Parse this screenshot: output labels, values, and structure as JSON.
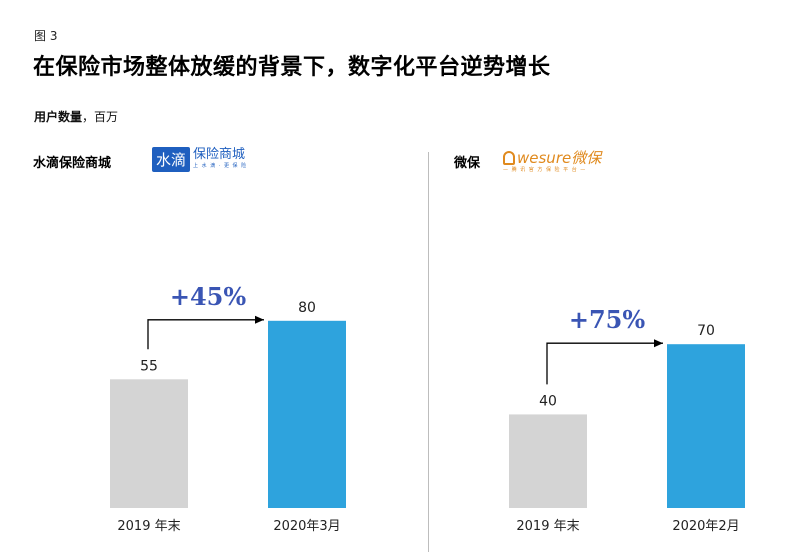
{
  "header": {
    "figure_label": "图 3",
    "title": "在保险市场整体放缓的背景下，数字化平台逆势增长",
    "subtitle_bold": "用户数量",
    "subtitle_unit": "，百万"
  },
  "panels": [
    {
      "name": "水滴保险商城",
      "logo": {
        "box": "水滴",
        "main": "保险商城",
        "tagline": "上 水 滴 · 更 保 险"
      }
    },
    {
      "name": "微保",
      "logo": {
        "main": "wesure微保",
        "tagline": "— 腾 讯 官 方 保 险 平 台 —"
      }
    }
  ],
  "colors": {
    "gray_bar": "#d4d4d4",
    "blue_bar": "#2ea3dd",
    "growth_text": "#3a55b4",
    "arrow": "#000000"
  },
  "chart_data": [
    {
      "type": "bar",
      "title": "水滴保险商城",
      "categories": [
        "2019 年末",
        "2020年3月"
      ],
      "values": [
        55,
        80
      ],
      "growth_label": "+45%",
      "ylabel": "用户数量，百万"
    },
    {
      "type": "bar",
      "title": "微保",
      "categories": [
        "2019 年末",
        "2020年2月"
      ],
      "values": [
        40,
        70
      ],
      "growth_label": "+75%",
      "ylabel": "用户数量，百万"
    }
  ]
}
